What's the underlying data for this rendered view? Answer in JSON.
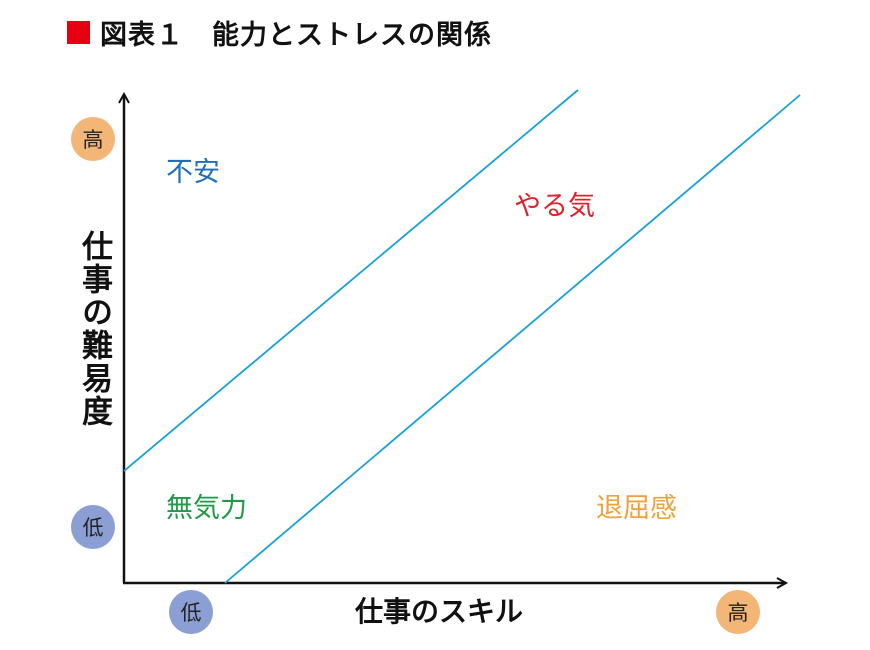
{
  "title": "図表１　能力とストレスの関係",
  "colors": {
    "marker": "#e60012",
    "band_line": "#1aa0d8",
    "axis": "#111111",
    "badge_high": "#f3b677",
    "badge_low": "#8b9fd4",
    "anxiety": "#1f6fb7",
    "motivation": "#e0202b",
    "apathy": "#1e9a48",
    "boredom": "#eda23a"
  },
  "y_axis": {
    "label": "仕事の難易度",
    "high": "高",
    "low": "低"
  },
  "x_axis": {
    "label": "仕事のスキル",
    "high": "高",
    "low": "低"
  },
  "zones": {
    "anxiety": "不安",
    "motivation": "やる気",
    "apathy": "無気力",
    "boredom": "退屈感"
  }
}
